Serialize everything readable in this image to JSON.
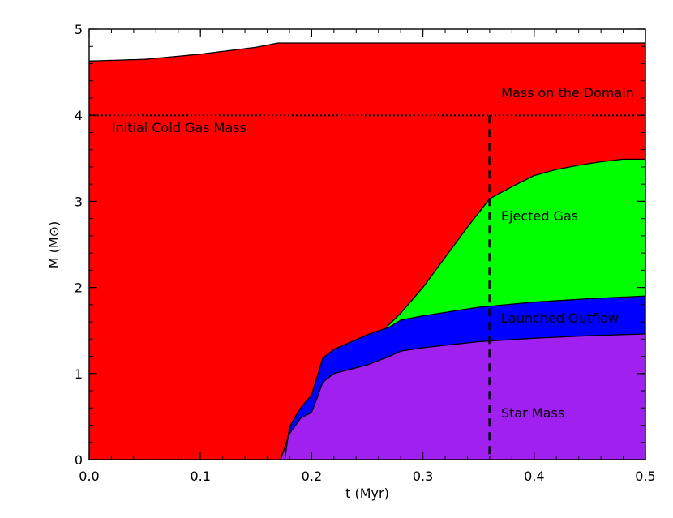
{
  "chart_data": {
    "type": "area",
    "xlabel": "t (Myr)",
    "ylabel": "M (M⊙)",
    "xlim": [
      0.0,
      0.5
    ],
    "ylim": [
      0,
      5
    ],
    "x_ticks": [
      0.0,
      0.1,
      0.2,
      0.3,
      0.4,
      0.5
    ],
    "x_tick_labels": [
      "0.0",
      "0.1",
      "0.2",
      "0.3",
      "0.4",
      "0.5"
    ],
    "y_ticks": [
      0,
      1,
      2,
      3,
      4,
      5
    ],
    "y_tick_labels": [
      "0",
      "1",
      "2",
      "3",
      "4",
      "5"
    ],
    "colors": {
      "mass_on_domain": "#ff0000",
      "ejected_gas": "#00ff00",
      "launched_outflow": "#0000ff",
      "star_mass": "#a020f0"
    },
    "series": [
      {
        "name": "Mass on the Domain",
        "color": "#ff0000",
        "x": [
          0.0,
          0.05,
          0.1,
          0.15,
          0.17,
          0.2,
          0.3,
          0.4,
          0.5
        ],
        "y": [
          4.63,
          4.65,
          4.71,
          4.79,
          4.84,
          4.84,
          4.84,
          4.84,
          4.84
        ]
      },
      {
        "name": "Ejected Gas",
        "color": "#00ff00",
        "x": [
          0.268,
          0.28,
          0.3,
          0.32,
          0.34,
          0.36,
          0.38,
          0.4,
          0.42,
          0.44,
          0.46,
          0.48,
          0.5
        ],
        "y": [
          1.55,
          1.7,
          2.0,
          2.35,
          2.7,
          3.03,
          3.17,
          3.3,
          3.37,
          3.42,
          3.46,
          3.49,
          3.49
        ]
      },
      {
        "name": "Launched Outflow",
        "color": "#0000ff",
        "x": [
          0.176,
          0.18,
          0.19,
          0.2,
          0.21,
          0.22,
          0.25,
          0.27,
          0.28,
          0.3,
          0.35,
          0.4,
          0.45,
          0.5
        ],
        "y": [
          0.02,
          0.38,
          0.6,
          0.75,
          1.18,
          1.28,
          1.45,
          1.54,
          1.62,
          1.67,
          1.77,
          1.83,
          1.87,
          1.9
        ]
      },
      {
        "name": "Star Mass",
        "color": "#a020f0",
        "x": [
          0.172,
          0.18,
          0.19,
          0.2,
          0.205,
          0.21,
          0.22,
          0.25,
          0.27,
          0.28,
          0.3,
          0.35,
          0.4,
          0.45,
          0.5
        ],
        "y": [
          0.0,
          0.3,
          0.48,
          0.55,
          0.72,
          0.9,
          1.0,
          1.1,
          1.2,
          1.26,
          1.3,
          1.37,
          1.41,
          1.44,
          1.46
        ]
      }
    ],
    "annotations": {
      "initial_cold_gas_mass": {
        "label": "Initial Cold Gas Mass",
        "y": 4.0,
        "style": "dotted horizontal line"
      },
      "mass_on_domain_label": "Mass on the Domain",
      "ejected_gas_label": "Ejected Gas",
      "launched_outflow_label": "Launched Outflow",
      "star_mass_label": "Star Mass",
      "time_marker": {
        "x": 0.36,
        "style": "dashed vertical line"
      }
    }
  }
}
